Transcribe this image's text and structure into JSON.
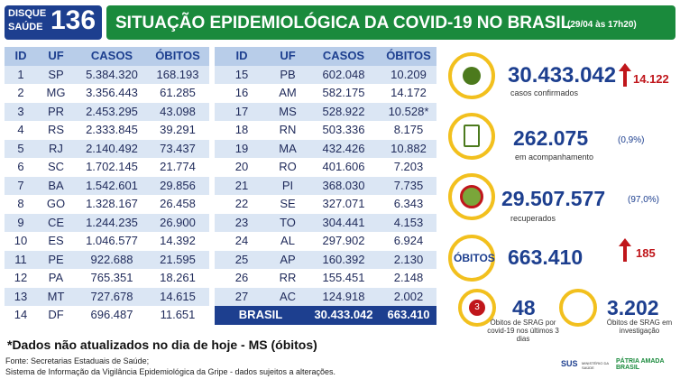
{
  "header": {
    "logo_top": "DISQUE",
    "logo_bottom": "SAÚDE",
    "logo_number": "136",
    "title": "SITUAÇÃO EPIDEMIOLÓGICA DA COVID-19 NO BRASIL",
    "date": "(29/04 às 17h20)"
  },
  "table": {
    "columns": [
      "ID",
      "UF",
      "CASOS",
      "ÓBITOS"
    ],
    "left_rows": [
      [
        "1",
        "SP",
        "5.384.320",
        "168.193"
      ],
      [
        "2",
        "MG",
        "3.356.443",
        "61.285"
      ],
      [
        "3",
        "PR",
        "2.453.295",
        "43.098"
      ],
      [
        "4",
        "RS",
        "2.333.845",
        "39.291"
      ],
      [
        "5",
        "RJ",
        "2.140.492",
        "73.437"
      ],
      [
        "6",
        "SC",
        "1.702.145",
        "21.774"
      ],
      [
        "7",
        "BA",
        "1.542.601",
        "29.856"
      ],
      [
        "8",
        "GO",
        "1.328.167",
        "26.458"
      ],
      [
        "9",
        "CE",
        "1.244.235",
        "26.900"
      ],
      [
        "10",
        "ES",
        "1.046.577",
        "14.392"
      ],
      [
        "11",
        "PE",
        "922.688",
        "21.595"
      ],
      [
        "12",
        "PA",
        "765.351",
        "18.261"
      ],
      [
        "13",
        "MT",
        "727.678",
        "14.615"
      ],
      [
        "14",
        "DF",
        "696.487",
        "11.651"
      ]
    ],
    "right_rows": [
      [
        "15",
        "PB",
        "602.048",
        "10.209"
      ],
      [
        "16",
        "AM",
        "582.175",
        "14.172"
      ],
      [
        "17",
        "MS",
        "528.922",
        "10.528*"
      ],
      [
        "18",
        "RN",
        "503.336",
        "8.175"
      ],
      [
        "19",
        "MA",
        "432.426",
        "10.882"
      ],
      [
        "20",
        "RO",
        "401.606",
        "7.203"
      ],
      [
        "21",
        "PI",
        "368.030",
        "7.735"
      ],
      [
        "22",
        "SE",
        "327.071",
        "6.343"
      ],
      [
        "23",
        "TO",
        "304.441",
        "4.153"
      ],
      [
        "24",
        "AL",
        "297.902",
        "6.924"
      ],
      [
        "25",
        "AP",
        "160.392",
        "2.130"
      ],
      [
        "26",
        "RR",
        "155.451",
        "2.148"
      ],
      [
        "27",
        "AC",
        "124.918",
        "2.002"
      ]
    ],
    "total": [
      "BRASIL",
      "30.433.042",
      "663.410"
    ]
  },
  "stats": {
    "confirmed": {
      "value": "30.433.042",
      "change": "14.122",
      "label": "casos confirmados"
    },
    "monitoring": {
      "value": "262.075",
      "share": "(0,9%)",
      "label": "em acompanhamento"
    },
    "recovered": {
      "value": "29.507.577",
      "share": "(97,0%)",
      "label": "recuperados"
    },
    "deaths": {
      "label": "ÓBITOS",
      "value": "663.410",
      "change": "185"
    },
    "srag_recent": {
      "icon_number": "3",
      "value": "48",
      "label": "Óbitos de SRAG por covid-19 nos últimos 3 dias"
    },
    "srag_investigation": {
      "value": "3.202",
      "label": "Óbitos de SRAG em investigação"
    }
  },
  "footnote": "*Dados não atualizados no dia de hoje - MS (óbitos)",
  "sources": [
    "Fonte: Secretarias Estaduais de Saúde;",
    "Sistema de Informação da Vigilância Epidemiológica da Gripe - dados sujeitos a alterações."
  ],
  "footer_logos": {
    "sus": "SUS",
    "ministry": "MINISTÉRIO DA SAÚDE",
    "government": "PÁTRIA AMADA BRASIL"
  }
}
